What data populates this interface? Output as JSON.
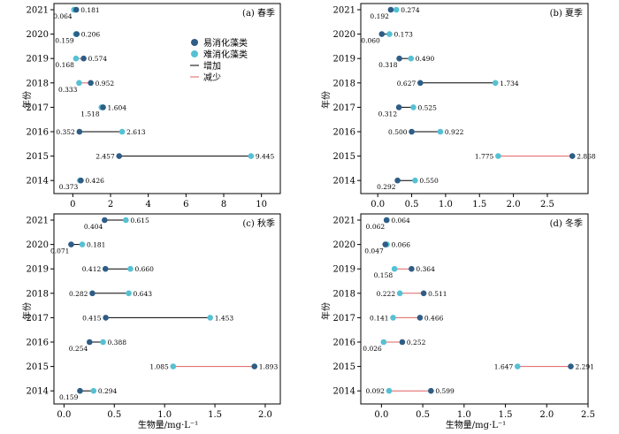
{
  "figure": {
    "ylabel": "年份",
    "xlabel": "生物量/mg·L⁻¹",
    "colors": {
      "easy": "#2e5d86",
      "hard": "#55c1d3",
      "increase": "#000000",
      "decrease": "#e06060"
    }
  },
  "legend": {
    "items": [
      {
        "label": "易消化藻类",
        "kind": "dot",
        "color": "#2e5d86"
      },
      {
        "label": "难消化藻类",
        "kind": "dot",
        "color": "#55c1d3"
      },
      {
        "label": "增加",
        "kind": "line",
        "color": "#000000"
      },
      {
        "label": "减少",
        "kind": "line",
        "color": "#e06060"
      }
    ]
  },
  "chart_data": [
    {
      "type": "dumbbell",
      "title": "(a) 春季",
      "xlim": [
        -1,
        11
      ],
      "xticks": [
        "0",
        "2",
        "4",
        "6",
        "8",
        "10"
      ],
      "years": [
        "2021",
        "2020",
        "2019",
        "2018",
        "2017",
        "2016",
        "2015",
        "2014"
      ],
      "series": [
        {
          "name": "易消化藻类",
          "values": [
            0.181,
            0.206,
            0.574,
            0.952,
            1.604,
            0.352,
            2.457,
            0.426
          ]
        },
        {
          "name": "难消化藻类",
          "values": [
            0.064,
            0.159,
            0.168,
            0.333,
            1.518,
            2.613,
            9.445,
            0.373
          ]
        }
      ]
    },
    {
      "type": "dumbbell",
      "title": "(b) 夏季",
      "xlim": [
        -0.25,
        3.1
      ],
      "xticks": [
        "0.0",
        "0.5",
        "1.0",
        "1.5",
        "2.0",
        "2.5"
      ],
      "years": [
        "2021",
        "2020",
        "2019",
        "2018",
        "2017",
        "2016",
        "2015",
        "2014"
      ],
      "series": [
        {
          "name": "易消化藻类",
          "values": [
            0.192,
            0.06,
            0.318,
            0.627,
            0.312,
            0.5,
            2.868,
            0.292
          ]
        },
        {
          "name": "难消化藻类",
          "values": [
            0.274,
            0.173,
            0.49,
            1.734,
            0.525,
            0.922,
            1.775,
            0.55
          ]
        }
      ]
    },
    {
      "type": "dumbbell",
      "title": "(c) 秋季",
      "xlim": [
        -0.1,
        2.15
      ],
      "xticks": [
        "0.0",
        "0.5",
        "1.0",
        "1.5",
        "2.0"
      ],
      "years": [
        "2021",
        "2020",
        "2019",
        "2018",
        "2017",
        "2016",
        "2015",
        "2014"
      ],
      "series": [
        {
          "name": "易消化藻类",
          "values": [
            0.404,
            0.071,
            0.412,
            0.282,
            0.415,
            0.254,
            1.893,
            0.159
          ]
        },
        {
          "name": "难消化藻类",
          "values": [
            0.615,
            0.181,
            0.66,
            0.643,
            1.453,
            0.388,
            1.085,
            0.294
          ]
        }
      ]
    },
    {
      "type": "dumbbell",
      "title": "(d) 冬季",
      "xlim": [
        -0.25,
        2.5
      ],
      "xticks": [
        "0.0",
        "0.5",
        "1.0",
        "1.5",
        "2.0",
        "2.5"
      ],
      "years": [
        "2021",
        "2020",
        "2019",
        "2018",
        "2017",
        "2016",
        "2015",
        "2014"
      ],
      "series": [
        {
          "name": "易消化藻类",
          "values": [
            0.062,
            0.047,
            0.364,
            0.511,
            0.466,
            0.252,
            2.291,
            0.599
          ]
        },
        {
          "name": "难消化藻类",
          "values": [
            0.064,
            0.066,
            0.158,
            0.222,
            0.141,
            0.026,
            1.647,
            0.092
          ]
        }
      ]
    }
  ]
}
